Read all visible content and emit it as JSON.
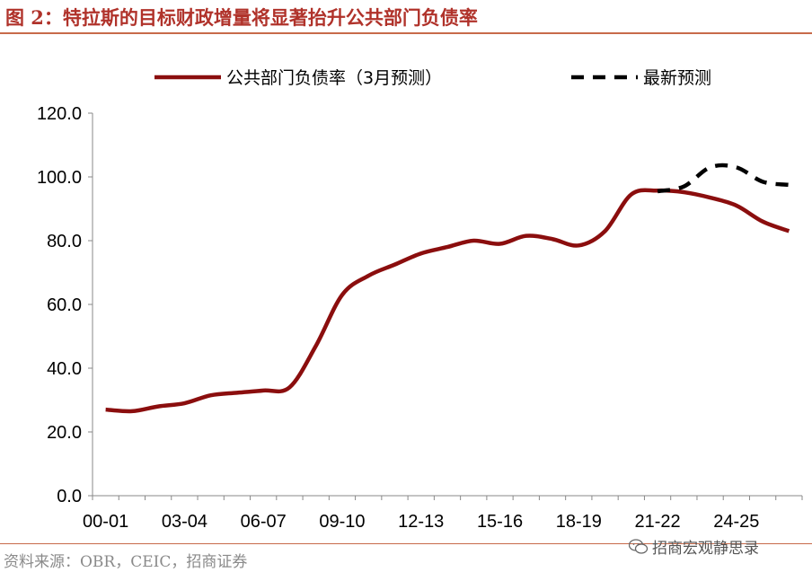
{
  "figure_title": "图 2：特拉斯的目标财政增量将显著抬升公共部门负债率",
  "source": "资料来源：OBR，CEIC，招商证券",
  "watermark": "招商宏观静思录",
  "watermark_icon": "wechat-icon",
  "colors": {
    "title": "#b0322a",
    "series_main": "#8b0e0e",
    "series_forecast": "#000000",
    "axis": "#888888"
  },
  "chart_data": {
    "type": "line",
    "title": "",
    "xlabel": "",
    "ylabel": "",
    "ylim": [
      0,
      120
    ],
    "yticks": [
      "0.0",
      "20.0",
      "40.0",
      "60.0",
      "80.0",
      "100.0",
      "120.0"
    ],
    "xticks": [
      "00-01",
      "03-04",
      "06-07",
      "09-10",
      "12-13",
      "15-16",
      "18-19",
      "21-22",
      "24-25"
    ],
    "grid": false,
    "legend_position": "top",
    "series": [
      {
        "name": "公共部门负债率（3月预测）",
        "style": "solid",
        "x": [
          "00-01",
          "01-02",
          "02-03",
          "03-04",
          "04-05",
          "05-06",
          "06-07",
          "07-08",
          "08-09",
          "09-10",
          "10-11",
          "11-12",
          "12-13",
          "13-14",
          "14-15",
          "15-16",
          "16-17",
          "17-18",
          "18-19",
          "19-20",
          "20-21",
          "21-22",
          "22-23",
          "23-24",
          "24-25",
          "25-26",
          "26-27"
        ],
        "values": [
          27.0,
          26.5,
          28.0,
          29.0,
          31.5,
          32.3,
          33.0,
          34.0,
          47.0,
          63.0,
          69.0,
          72.5,
          76.0,
          78.0,
          80.0,
          79.0,
          81.5,
          80.5,
          78.5,
          83.0,
          94.5,
          95.7,
          95.2,
          93.5,
          91.0,
          86.0,
          83.0
        ]
      },
      {
        "name": "最新预测",
        "style": "dashed",
        "x": [
          "21-22",
          "22-23",
          "23-24",
          "24-25",
          "25-26",
          "26-27"
        ],
        "values": [
          95.5,
          97.0,
          103.0,
          103.0,
          98.5,
          97.5
        ]
      }
    ]
  }
}
